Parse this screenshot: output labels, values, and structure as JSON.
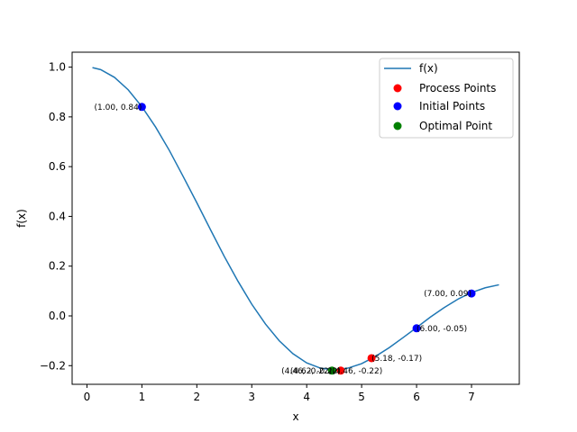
{
  "chart_data": {
    "type": "line",
    "title": "",
    "xlabel": "x",
    "ylabel": "f(x)",
    "xlim": [
      -0.27,
      7.87
    ],
    "ylim": [
      -0.275,
      1.06
    ],
    "x_ticks": [
      "0",
      "1",
      "2",
      "3",
      "4",
      "5",
      "6",
      "7"
    ],
    "y_ticks": [
      "−0.2",
      "0.0",
      "0.2",
      "0.4",
      "0.6",
      "0.8",
      "1.0"
    ],
    "grid": false,
    "legend_position": "top-right",
    "series": [
      {
        "name": "f(x)",
        "kind": "line",
        "color": "#1f77b4",
        "x": [
          0.1,
          0.25,
          0.5,
          0.75,
          1.0,
          1.25,
          1.5,
          1.75,
          2.0,
          2.25,
          2.5,
          2.75,
          3.0,
          3.25,
          3.5,
          3.75,
          4.0,
          4.25,
          4.5,
          4.75,
          5.0,
          5.25,
          5.5,
          5.75,
          6.0,
          6.25,
          6.5,
          6.75,
          7.0,
          7.25,
          7.5
        ],
        "y": [
          0.998,
          0.99,
          0.959,
          0.909,
          0.841,
          0.759,
          0.665,
          0.561,
          0.455,
          0.346,
          0.239,
          0.139,
          0.047,
          -0.033,
          -0.1,
          -0.152,
          -0.189,
          -0.21,
          -0.217,
          -0.21,
          -0.192,
          -0.163,
          -0.128,
          -0.088,
          -0.047,
          -0.005,
          0.033,
          0.067,
          0.094,
          0.113,
          0.125
        ]
      },
      {
        "name": "Process Points",
        "kind": "scatter",
        "color": "#ff0000",
        "points": [
          {
            "x": 4.62,
            "y": -0.22
          },
          {
            "x": 5.18,
            "y": -0.17
          }
        ]
      },
      {
        "name": "Initial Points",
        "kind": "scatter",
        "color": "#0000ff",
        "points": [
          {
            "x": 1.0,
            "y": 0.84
          },
          {
            "x": 6.0,
            "y": -0.05
          },
          {
            "x": 7.0,
            "y": 0.09
          }
        ]
      },
      {
        "name": "Optimal Point",
        "kind": "scatter",
        "color": "#008000",
        "points": [
          {
            "x": 4.46,
            "y": -0.22
          }
        ]
      }
    ],
    "annotations": [
      {
        "text": "(1.00, 0.84)",
        "x": 1.0,
        "y": 0.84,
        "anchor": "end"
      },
      {
        "text": "(6.00, -0.05)",
        "x": 6.0,
        "y": -0.05,
        "anchor": "start"
      },
      {
        "text": "(7.00, 0.09)",
        "x": 7.0,
        "y": 0.09,
        "anchor": "end"
      },
      {
        "text": "(5.18, -0.17)",
        "x": 5.18,
        "y": -0.17,
        "anchor": "start"
      },
      {
        "text": "(4.62, -0.22)",
        "x": 4.62,
        "y": -0.22,
        "anchor": "end"
      },
      {
        "text": "(4.46, -0.22)",
        "x": 4.46,
        "y": -0.22,
        "anchor": "end"
      },
      {
        "text": "(4.46, -0.22)",
        "x": 4.46,
        "y": -0.22,
        "anchor": "start"
      }
    ]
  }
}
